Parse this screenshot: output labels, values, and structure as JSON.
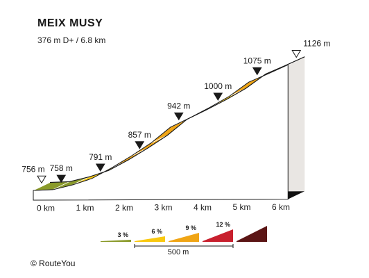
{
  "title": "MEIX MUSY",
  "subtitle": "376 m D+ / 6.8 km",
  "copyright": "© RouteYou",
  "colors": {
    "grade_3": "#8a9a2a",
    "grade_6": "#f9c80f",
    "grade_9": "#f0a515",
    "grade_12": "#c8202e",
    "grade_max": "#5b1515",
    "wall": "#e9e6e3",
    "ground": "#111111"
  },
  "chart_data": {
    "type": "area",
    "title": "MEIX MUSY",
    "subtitle": "376 m D+ / 6.8 km",
    "x_unit": "km",
    "y_unit": "m",
    "total_ascent_m": 376,
    "distance_km": 6.8,
    "x_ticks": [
      "0 km",
      "1 km",
      "2 km",
      "3 km",
      "4 km",
      "5 km",
      "6 km"
    ],
    "profile": [
      {
        "km": 0.0,
        "elevation_m": 756
      },
      {
        "km": 0.5,
        "elevation_m": 758
      },
      {
        "km": 1.0,
        "elevation_m": 772
      },
      {
        "km": 1.5,
        "elevation_m": 791
      },
      {
        "km": 2.0,
        "elevation_m": 822
      },
      {
        "km": 2.5,
        "elevation_m": 857
      },
      {
        "km": 3.0,
        "elevation_m": 895
      },
      {
        "km": 3.5,
        "elevation_m": 942
      },
      {
        "km": 4.0,
        "elevation_m": 970
      },
      {
        "km": 4.5,
        "elevation_m": 1000
      },
      {
        "km": 5.0,
        "elevation_m": 1033
      },
      {
        "km": 5.5,
        "elevation_m": 1075
      },
      {
        "km": 6.0,
        "elevation_m": 1100
      },
      {
        "km": 6.5,
        "elevation_m": 1126
      }
    ],
    "segment_grades": [
      "grade_3",
      "grade_3",
      "grade_6",
      "grade_6",
      "grade_9",
      "grade_9",
      "grade_9",
      "grade_6",
      "grade_9",
      "grade_6",
      "grade_9",
      "grade_9",
      "grade_6"
    ],
    "markers": [
      {
        "km": 0.0,
        "label": "756 m",
        "kind": "start"
      },
      {
        "km": 0.5,
        "label": "758 m",
        "kind": "point"
      },
      {
        "km": 1.5,
        "label": "791 m",
        "kind": "point"
      },
      {
        "km": 2.5,
        "label": "857 m",
        "kind": "point"
      },
      {
        "km": 3.5,
        "label": "942 m",
        "kind": "point"
      },
      {
        "km": 4.5,
        "label": "1000 m",
        "kind": "point"
      },
      {
        "km": 5.5,
        "label": "1075 m",
        "kind": "point"
      },
      {
        "km": 6.5,
        "label": "1126 m",
        "kind": "finish"
      }
    ],
    "legend": {
      "items": [
        {
          "label": "3 %",
          "color_key": "grade_3"
        },
        {
          "label": "6 %",
          "color_key": "grade_6"
        },
        {
          "label": "9 %",
          "color_key": "grade_9"
        },
        {
          "label": "12 %",
          "color_key": "grade_12"
        },
        {
          "label": "",
          "color_key": "grade_max"
        }
      ],
      "scale_label": "500 m"
    }
  }
}
